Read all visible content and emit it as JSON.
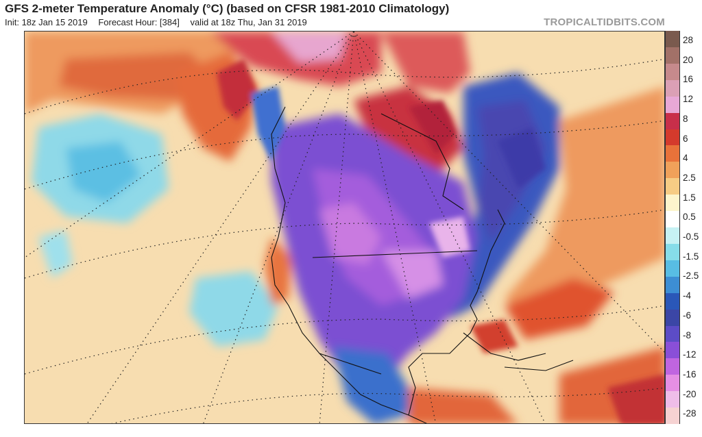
{
  "header": {
    "title": "GFS 2-meter Temperature Anomaly (°C) (based on CFSR 1981-2010 Climatology)",
    "init": "Init: 18z Jan 15 2019",
    "forecast_hour": "Forecast Hour: [384]",
    "valid": "valid at 18z Thu, Jan 31 2019",
    "brand": "TROPICALTIDBITS.COM"
  },
  "legend": {
    "labels": [
      "28",
      "20",
      "16",
      "12",
      "8",
      "6",
      "4",
      "2.5",
      "1.5",
      "0.5",
      "-0.5",
      "-1.5",
      "-2.5",
      "-4",
      "-6",
      "-8",
      "-12",
      "-16",
      "-20",
      "-28"
    ],
    "colors": [
      "#7a5a4e",
      "#a27168",
      "#c68a8c",
      "#dba0b5",
      "#e8a8d6",
      "#c82f4a",
      "#d43a2c",
      "#e8723a",
      "#f0a15a",
      "#f6cc84",
      "#fdf5cc",
      "#ffffff",
      "#c6f2f4",
      "#86dde9",
      "#58bde4",
      "#3d8ed4",
      "#2a57b8",
      "#3b46a6",
      "#5c4cc6",
      "#8a4fd8",
      "#c065e0",
      "#e58fe4",
      "#efbde9",
      "#f6d2d2"
    ]
  }
}
